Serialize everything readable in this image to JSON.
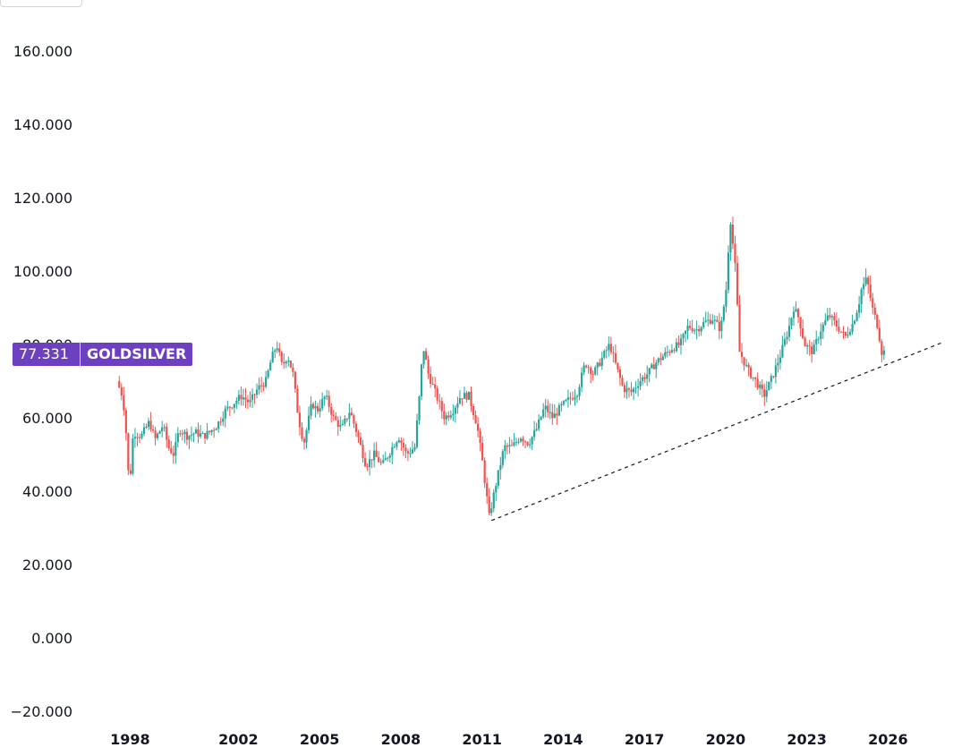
{
  "price_tag": {
    "value": "77.331",
    "symbol": "GOLDSILVER"
  },
  "colors": {
    "up": "#26a69a",
    "down": "#ef5350",
    "trendline": "#131722",
    "tag": "#6c40c1"
  },
  "chart_data": {
    "type": "candlestick",
    "symbol": "GOLDSILVER",
    "last_value": 77.331,
    "ylim": [
      -20,
      160
    ],
    "xlim": [
      1996.5,
      2028.4
    ],
    "y_ticks": [
      "160.000",
      "140.000",
      "120.000",
      "100.000",
      "80.000",
      "60.000",
      "40.000",
      "20.000",
      "0.000",
      "−20.000"
    ],
    "y_tick_values": [
      160,
      140,
      120,
      100,
      80,
      60,
      40,
      20,
      0,
      -20
    ],
    "x_ticks": [
      "1998",
      "2002",
      "2005",
      "2008",
      "2011",
      "2014",
      "2017",
      "2020",
      "2023",
      "2026"
    ],
    "x_tick_values": [
      1998,
      2002,
      2005,
      2008,
      2011,
      2014,
      2017,
      2020,
      2023,
      2026
    ],
    "grid": false,
    "series": [
      {
        "values": [
          [
            1997.6,
            70
          ],
          [
            1997.8,
            66
          ],
          [
            1997.9,
            60
          ],
          [
            1998.0,
            48
          ],
          [
            1998.05,
            40
          ],
          [
            1998.2,
            56
          ],
          [
            1998.5,
            55
          ],
          [
            1998.8,
            59
          ],
          [
            1999.0,
            54
          ],
          [
            1999.3,
            58
          ],
          [
            1999.5,
            52
          ],
          [
            1999.7,
            50
          ],
          [
            1999.9,
            57
          ],
          [
            2000.2,
            55
          ],
          [
            2000.5,
            56
          ],
          [
            2000.8,
            55
          ],
          [
            2001.0,
            56
          ],
          [
            2001.3,
            58
          ],
          [
            2001.6,
            62
          ],
          [
            2001.9,
            64
          ],
          [
            2002.2,
            66
          ],
          [
            2002.5,
            64
          ],
          [
            2002.8,
            68
          ],
          [
            2003.1,
            70
          ],
          [
            2003.3,
            76
          ],
          [
            2003.5,
            80
          ],
          [
            2003.7,
            74
          ],
          [
            2003.9,
            77
          ],
          [
            2004.1,
            72
          ],
          [
            2004.3,
            60
          ],
          [
            2004.5,
            53
          ],
          [
            2004.8,
            64
          ],
          [
            2005.0,
            62
          ],
          [
            2005.3,
            66
          ],
          [
            2005.6,
            60
          ],
          [
            2005.9,
            57
          ],
          [
            2006.2,
            62
          ],
          [
            2006.5,
            55
          ],
          [
            2006.8,
            47
          ],
          [
            2007.1,
            50
          ],
          [
            2007.4,
            47
          ],
          [
            2007.7,
            51
          ],
          [
            2008.0,
            55
          ],
          [
            2008.3,
            50
          ],
          [
            2008.6,
            52
          ],
          [
            2008.8,
            68
          ],
          [
            2008.9,
            80
          ],
          [
            2009.1,
            72
          ],
          [
            2009.4,
            66
          ],
          [
            2009.7,
            60
          ],
          [
            2010.0,
            62
          ],
          [
            2010.3,
            66
          ],
          [
            2010.6,
            66
          ],
          [
            2010.9,
            58
          ],
          [
            2011.1,
            48
          ],
          [
            2011.3,
            36
          ],
          [
            2011.35,
            33
          ],
          [
            2011.6,
            42
          ],
          [
            2011.9,
            52
          ],
          [
            2012.2,
            52
          ],
          [
            2012.5,
            55
          ],
          [
            2012.8,
            53
          ],
          [
            2013.1,
            57
          ],
          [
            2013.4,
            63
          ],
          [
            2013.7,
            60
          ],
          [
            2014.0,
            63
          ],
          [
            2014.3,
            65
          ],
          [
            2014.6,
            67
          ],
          [
            2014.9,
            75
          ],
          [
            2015.2,
            72
          ],
          [
            2015.5,
            76
          ],
          [
            2015.8,
            80
          ],
          [
            2016.0,
            75
          ],
          [
            2016.3,
            68
          ],
          [
            2016.6,
            67
          ],
          [
            2016.9,
            70
          ],
          [
            2017.2,
            72
          ],
          [
            2017.5,
            75
          ],
          [
            2017.8,
            77
          ],
          [
            2018.1,
            79
          ],
          [
            2018.4,
            80
          ],
          [
            2018.7,
            85
          ],
          [
            2019.0,
            84
          ],
          [
            2019.3,
            86
          ],
          [
            2019.6,
            87
          ],
          [
            2019.9,
            84
          ],
          [
            2020.1,
            95
          ],
          [
            2020.2,
            108
          ],
          [
            2020.25,
            115
          ],
          [
            2020.45,
            100
          ],
          [
            2020.6,
            78
          ],
          [
            2020.9,
            73
          ],
          [
            2021.2,
            70
          ],
          [
            2021.5,
            66
          ],
          [
            2021.8,
            71
          ],
          [
            2022.1,
            77
          ],
          [
            2022.4,
            84
          ],
          [
            2022.6,
            90
          ],
          [
            2022.8,
            87
          ],
          [
            2023.0,
            80
          ],
          [
            2023.3,
            78
          ],
          [
            2023.6,
            84
          ],
          [
            2023.9,
            88
          ],
          [
            2024.2,
            85
          ],
          [
            2024.5,
            82
          ],
          [
            2024.8,
            86
          ],
          [
            2025.0,
            91
          ],
          [
            2025.1,
            95
          ],
          [
            2025.3,
            98
          ],
          [
            2025.5,
            90
          ],
          [
            2025.7,
            85
          ],
          [
            2025.85,
            78
          ]
        ]
      }
    ],
    "trendline": {
      "style": "dashed",
      "from": [
        2011.35,
        32
      ],
      "to": [
        2028.0,
        80.5
      ]
    }
  }
}
